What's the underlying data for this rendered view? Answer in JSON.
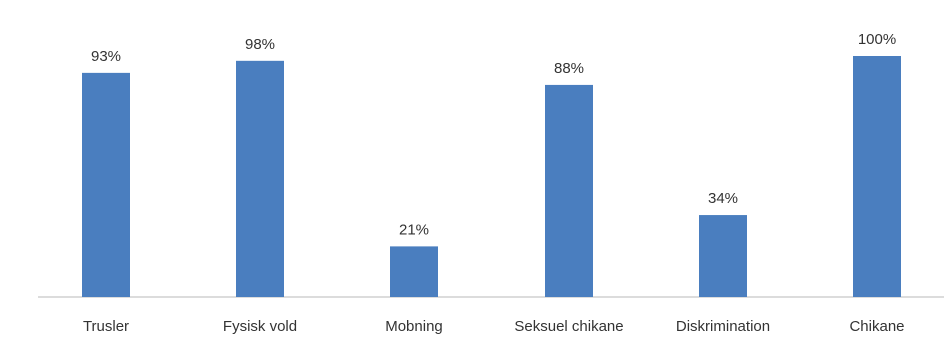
{
  "chart_data": {
    "type": "bar",
    "categories": [
      "Trusler",
      "Fysisk vold",
      "Mobning",
      "Seksuel chikane",
      "Diskrimination",
      "Chikane"
    ],
    "values": [
      93,
      98,
      21,
      88,
      34,
      100
    ],
    "value_labels": [
      "93%",
      "98%",
      "21%",
      "88%",
      "34%",
      "100%"
    ],
    "ylim": [
      0,
      100
    ],
    "grid": false,
    "legend": "none",
    "bar_color": "#4a7ebf",
    "axis_color": "#d0d0d0"
  }
}
